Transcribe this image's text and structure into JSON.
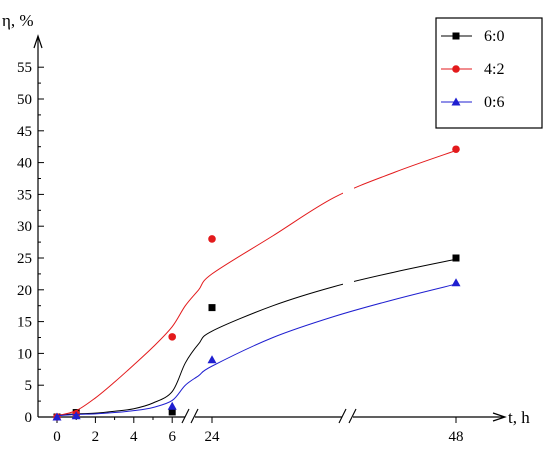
{
  "chart_data": {
    "type": "scatter",
    "ylabel": "η, %",
    "xlabel": "t, h",
    "ylim": [
      0,
      57
    ],
    "yticks": [
      0,
      5,
      10,
      15,
      20,
      25,
      30,
      35,
      40,
      45,
      50,
      55
    ],
    "xticks": [
      0,
      2,
      4,
      6,
      24,
      48
    ],
    "x_axis_breaks": [
      "between 6 and 24",
      "between 24 and 48"
    ],
    "grid": false,
    "legend_position": "top-right",
    "series": [
      {
        "name": "6:0",
        "color": "#000000",
        "marker": "square",
        "points": [
          [
            0,
            0
          ],
          [
            1,
            0.7
          ],
          [
            6,
            0.8
          ],
          [
            24,
            17.2
          ],
          [
            48,
            25.0
          ]
        ],
        "fit": [
          [
            0,
            0.3
          ],
          [
            1,
            0.5
          ],
          [
            2,
            0.6
          ],
          [
            3,
            0.9
          ],
          [
            4,
            1.3
          ],
          [
            5,
            2.2
          ],
          [
            6,
            4.0
          ],
          [
            12,
            8.5
          ],
          [
            18,
            11.5
          ],
          [
            24,
            13.5
          ],
          [
            30,
            17.5
          ],
          [
            36,
            20.5
          ],
          [
            42,
            22.8
          ],
          [
            48,
            24.8
          ]
        ]
      },
      {
        "name": "4:2",
        "color": "#e31a1c",
        "marker": "circle",
        "points": [
          [
            0,
            0
          ],
          [
            1,
            0.5
          ],
          [
            6,
            12.6
          ],
          [
            24,
            28.0
          ],
          [
            48,
            42.1
          ]
        ],
        "fit": [
          [
            0,
            0.2
          ],
          [
            1,
            1.0
          ],
          [
            2,
            3.0
          ],
          [
            3,
            5.5
          ],
          [
            4,
            8.2
          ],
          [
            5,
            11.0
          ],
          [
            6,
            14.2
          ],
          [
            12,
            17.5
          ],
          [
            18,
            20.0
          ],
          [
            24,
            22.5
          ],
          [
            30,
            28.5
          ],
          [
            36,
            34.5
          ],
          [
            42,
            38.5
          ],
          [
            48,
            41.9
          ]
        ]
      },
      {
        "name": "0:6",
        "color": "#1f1fd0",
        "marker": "triangle",
        "points": [
          [
            0,
            0
          ],
          [
            1,
            0.2
          ],
          [
            6,
            1.7
          ],
          [
            24,
            9.0
          ],
          [
            48,
            21.1
          ]
        ],
        "fit": [
          [
            0,
            0.2
          ],
          [
            1,
            0.4
          ],
          [
            2,
            0.5
          ],
          [
            3,
            0.7
          ],
          [
            4,
            1.0
          ],
          [
            5,
            1.5
          ],
          [
            6,
            2.6
          ],
          [
            12,
            5.0
          ],
          [
            18,
            6.5
          ],
          [
            24,
            8.0
          ],
          [
            30,
            12.5
          ],
          [
            36,
            15.8
          ],
          [
            42,
            18.5
          ],
          [
            48,
            20.9
          ]
        ]
      }
    ]
  }
}
